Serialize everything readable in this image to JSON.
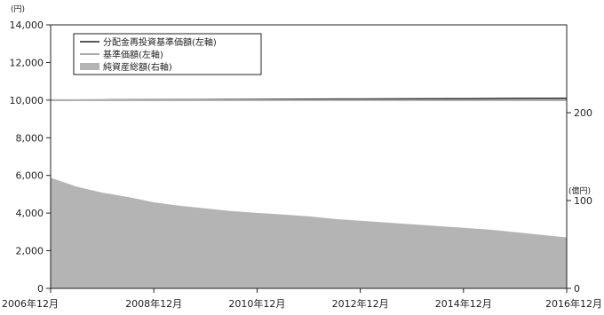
{
  "chart_data": {
    "type": "area",
    "left_unit": "(円)",
    "right_unit": "(億円)",
    "y_left": {
      "ylim": [
        0,
        14000
      ],
      "ticks": [
        "14,000",
        "12,000",
        "10,000",
        "8,000",
        "6,000",
        "4,000",
        "2,000",
        "0"
      ]
    },
    "y_right": {
      "ylim": [
        0,
        300
      ],
      "ticks": [
        "200",
        "100",
        "0"
      ]
    },
    "x_ticks": [
      "2006年12月",
      "2008年12月",
      "2010年12月",
      "2012年12月",
      "2014年12月",
      "2016年12月"
    ],
    "legend": [
      {
        "label": "分配金再投資基準価額(左軸)",
        "style": "line",
        "color": "#222222"
      },
      {
        "label": "基準価額(左軸)",
        "style": "line",
        "color": "#aaaaaa"
      },
      {
        "label": "純資産総額(右軸)",
        "style": "area",
        "color": "#b4b4b4"
      }
    ],
    "series": [
      {
        "name": "分配金再投資基準価額(左軸)",
        "axis": "left",
        "x": [
          "2006-12",
          "2007-12",
          "2008-12",
          "2009-12",
          "2010-12",
          "2011-12",
          "2012-12",
          "2013-12",
          "2014-12",
          "2015-12",
          "2016-12"
        ],
        "values": [
          10000,
          10010,
          10020,
          10030,
          10040,
          10050,
          10060,
          10070,
          10080,
          10090,
          10100
        ]
      },
      {
        "name": "基準価額(左軸)",
        "axis": "left",
        "x": [
          "2006-12",
          "2007-12",
          "2008-12",
          "2009-12",
          "2010-12",
          "2011-12",
          "2012-12",
          "2013-12",
          "2014-12",
          "2015-12",
          "2016-12"
        ],
        "values": [
          10000,
          10000,
          10000,
          10000,
          10000,
          10000,
          10000,
          10000,
          10000,
          10000,
          10000
        ]
      },
      {
        "name": "純資産総額(右軸)",
        "axis": "right",
        "x": [
          "2006-12",
          "2007-06",
          "2007-12",
          "2008-06",
          "2008-12",
          "2009-06",
          "2009-12",
          "2010-06",
          "2010-12",
          "2011-06",
          "2011-12",
          "2012-06",
          "2012-12",
          "2013-06",
          "2013-12",
          "2014-06",
          "2014-12",
          "2015-06",
          "2015-12",
          "2016-06",
          "2016-12"
        ],
        "values": [
          126,
          116,
          109,
          104,
          98,
          94,
          91,
          88,
          86,
          84,
          82,
          79,
          77,
          75,
          73,
          71,
          69,
          67,
          64,
          61,
          58
        ]
      }
    ]
  }
}
